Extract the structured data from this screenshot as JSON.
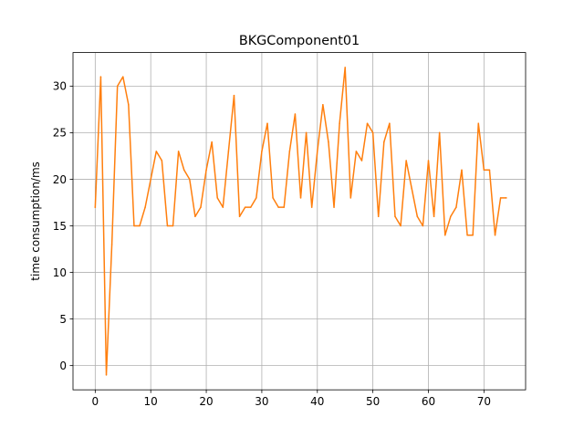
{
  "chart_data": {
    "type": "line",
    "title": "BKGComponent01",
    "xlabel": "",
    "ylabel": "time consumption/ms",
    "xlim": [
      -4,
      77.5
    ],
    "ylim": [
      -2.6,
      33.6
    ],
    "xticks": [
      0,
      10,
      20,
      30,
      40,
      50,
      60,
      70
    ],
    "yticks": [
      0,
      5,
      10,
      15,
      20,
      25,
      30
    ],
    "grid": true,
    "legend": "none",
    "series": [
      {
        "color": "#ff7f0e",
        "x": [
          0,
          1,
          2,
          3,
          4,
          5,
          6,
          7,
          8,
          9,
          10,
          11,
          12,
          13,
          14,
          15,
          16,
          17,
          18,
          19,
          20,
          21,
          22,
          23,
          24,
          25,
          26,
          27,
          28,
          29,
          30,
          31,
          32,
          33,
          34,
          35,
          36,
          37,
          38,
          39,
          40,
          41,
          42,
          43,
          44,
          45,
          46,
          47,
          48,
          49,
          50,
          51,
          52,
          53,
          54,
          55,
          56,
          57,
          58,
          59,
          60,
          61,
          62,
          63,
          64,
          65,
          66,
          67,
          68,
          69,
          70,
          71,
          72,
          73,
          74
        ],
        "y": [
          17,
          31,
          -1,
          13,
          30,
          31,
          28,
          15,
          15,
          17,
          20,
          23,
          22,
          15,
          15,
          23,
          21,
          20,
          16,
          17,
          21,
          24,
          18,
          17,
          23,
          29,
          16,
          17,
          17,
          18,
          23,
          26,
          18,
          17,
          17,
          23,
          27,
          18,
          25,
          17,
          23,
          28,
          24,
          17,
          26,
          32,
          18,
          23,
          22,
          26,
          25,
          16,
          24,
          26,
          16,
          15,
          22,
          19,
          16,
          15,
          22,
          16,
          25,
          14,
          16,
          17,
          21,
          14,
          14,
          26,
          21,
          21,
          14,
          18,
          18
        ]
      }
    ]
  }
}
